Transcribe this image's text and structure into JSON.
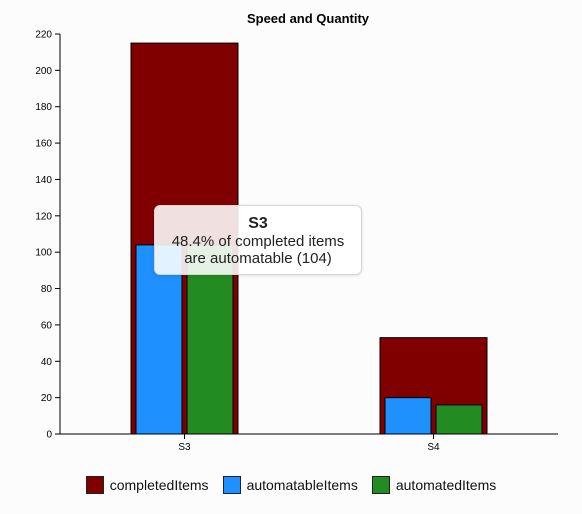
{
  "chart_data": {
    "type": "bar",
    "title": "Speed and Quantity",
    "categories": [
      "S3",
      "S4"
    ],
    "ylim": [
      0,
      220
    ],
    "yticks": [
      0,
      20,
      40,
      60,
      80,
      100,
      120,
      140,
      160,
      180,
      200,
      220
    ],
    "grid": false,
    "legend_position": "bottom",
    "series": [
      {
        "name": "completedItems",
        "color": "#800000",
        "values": [
          215,
          53
        ]
      },
      {
        "name": "automatableItems",
        "color": "#1e90ff",
        "values": [
          104,
          20
        ]
      },
      {
        "name": "automatedItems",
        "color": "#228b22",
        "values": [
          104,
          16
        ]
      }
    ]
  },
  "tooltip": {
    "title": "S3",
    "line1": "48.4% of completed items",
    "line2": "are automatable (104)"
  }
}
